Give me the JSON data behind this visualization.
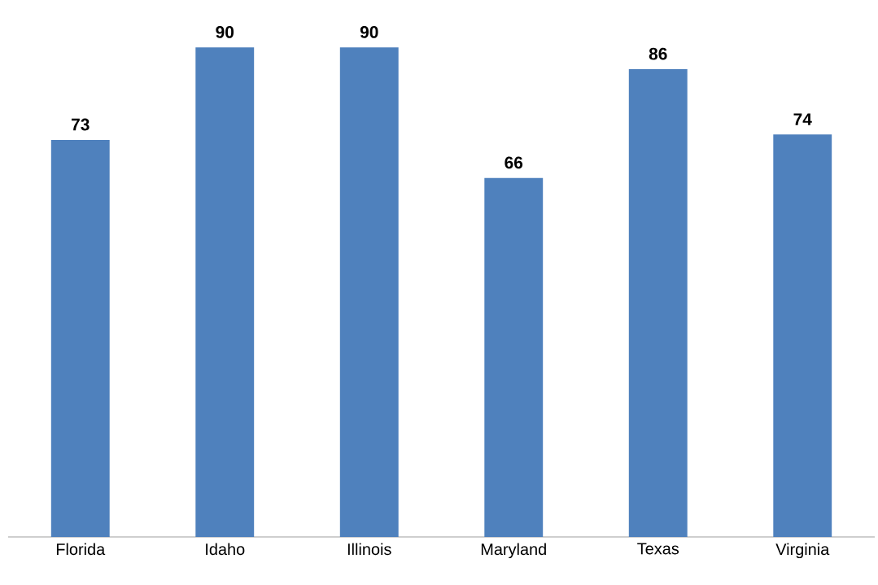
{
  "chart_data": {
    "type": "bar",
    "categories": [
      "Florida",
      "Idaho",
      "Illinois",
      "Maryland",
      "Texas",
      "Virginia"
    ],
    "values": [
      73,
      90,
      90,
      66,
      86,
      74
    ],
    "color": "#4f81bd",
    "data_labels": true
  }
}
